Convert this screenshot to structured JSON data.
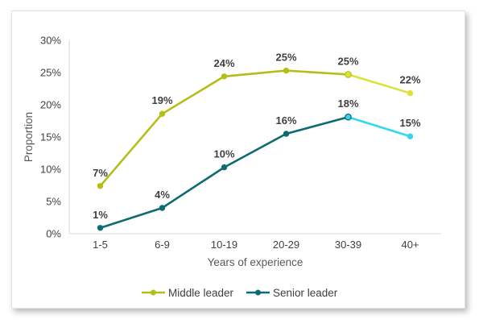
{
  "chart_data": {
    "type": "line",
    "title": "",
    "xlabel": "Years of experience",
    "ylabel": "Proportion",
    "categories": [
      "1-5",
      "6-9",
      "10-19",
      "20-29",
      "30-39",
      "40+"
    ],
    "ylim": [
      0,
      30
    ],
    "yticks": [
      "0%",
      "5%",
      "10%",
      "15%",
      "20%",
      "25%",
      "30%"
    ],
    "grid": false,
    "legend_position": "bottom",
    "series": [
      {
        "name": "Middle leader",
        "color": "#b5be17",
        "highlight_color": "#dce23a",
        "values": [
          7.4,
          18.6,
          24.4,
          25.3,
          24.7,
          21.8
        ],
        "labels": [
          "7%",
          "19%",
          "24%",
          "25%",
          "25%",
          "22%"
        ]
      },
      {
        "name": "Senior leader",
        "color": "#0f6b72",
        "highlight_color": "#33d6ee",
        "values": [
          0.9,
          4.0,
          10.3,
          15.5,
          18.1,
          15.1
        ],
        "labels": [
          "1%",
          "4%",
          "10%",
          "16%",
          "18%",
          "15%"
        ]
      }
    ]
  }
}
